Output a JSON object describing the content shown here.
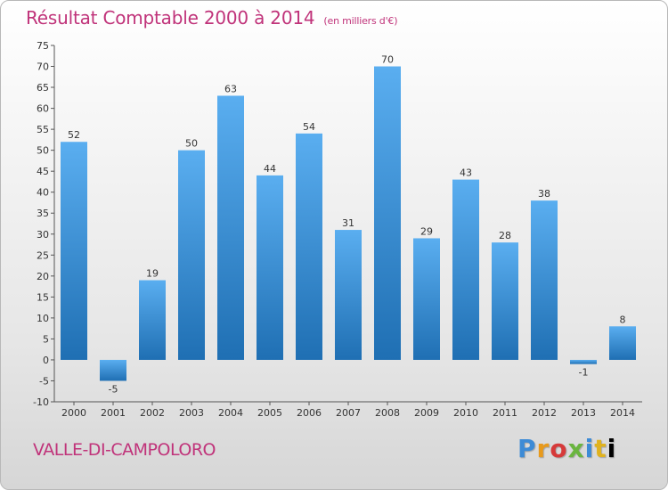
{
  "title": "Résultat Comptable 2000 à 2014",
  "subtitle": "(en milliers d'€)",
  "commune": "VALLE-DI-CAMPOLORO",
  "logo": [
    "P",
    "r",
    "o",
    "x",
    "i",
    "t",
    "i"
  ],
  "colors": {
    "title": "#c0337a",
    "bar_light": "#5aaef0",
    "bar_dark": "#1f6fb3"
  },
  "chart_data": {
    "type": "bar",
    "title": "Résultat Comptable 2000 à 2014",
    "subtitle": "(en milliers d'€)",
    "categories": [
      "2000",
      "2001",
      "2002",
      "2003",
      "2004",
      "2005",
      "2006",
      "2007",
      "2008",
      "2009",
      "2010",
      "2011",
      "2012",
      "2013",
      "2014"
    ],
    "values": [
      52,
      -5,
      19,
      50,
      63,
      44,
      54,
      31,
      70,
      29,
      43,
      28,
      38,
      -1,
      8
    ],
    "ylim": [
      -10,
      75
    ],
    "yticks": [
      75,
      70,
      65,
      60,
      55,
      50,
      45,
      40,
      35,
      30,
      25,
      20,
      15,
      10,
      5,
      0,
      -5,
      -10
    ],
    "grid": false
  }
}
